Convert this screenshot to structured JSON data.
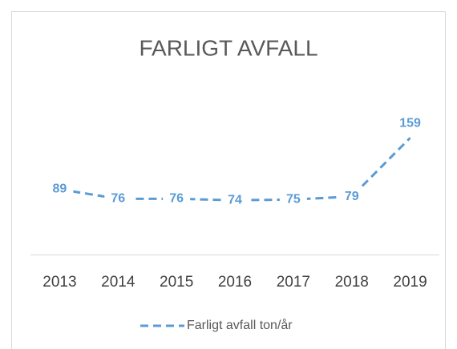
{
  "chart_data": {
    "type": "line",
    "title": "FARLIGT AVFALL",
    "categories": [
      "2013",
      "2014",
      "2015",
      "2016",
      "2017",
      "2018",
      "2019"
    ],
    "series": [
      {
        "name": "Farligt avfall ton/år",
        "color": "#5b9bd5",
        "values": [
          89,
          76,
          76,
          74,
          75,
          79,
          159
        ]
      }
    ],
    "ylim": [
      0,
      180
    ],
    "legend": "bottom",
    "line_style": "dashed"
  }
}
